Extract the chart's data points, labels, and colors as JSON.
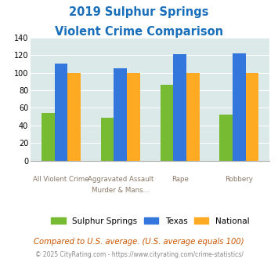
{
  "title_line1": "2019 Sulphur Springs",
  "title_line2": "Violent Crime Comparison",
  "title_color": "#1a6fbb",
  "cat_labels_top": [
    "",
    "Aggravated Assault",
    "",
    ""
  ],
  "cat_labels_bot": [
    "All Violent Crime",
    "Murder & Mans...",
    "Rape",
    "Robbery"
  ],
  "sulphur_springs": [
    54,
    49,
    86,
    52
  ],
  "texas": [
    110,
    105,
    121,
    122
  ],
  "national": [
    100,
    100,
    100,
    100
  ],
  "color_ss": "#77bb33",
  "color_tx": "#3377dd",
  "color_nat": "#ffaa22",
  "ylim": [
    0,
    140
  ],
  "yticks": [
    0,
    20,
    40,
    60,
    80,
    100,
    120,
    140
  ],
  "bg_color": "#dce9e9",
  "legend_labels": [
    "Sulphur Springs",
    "Texas",
    "National"
  ],
  "footnote1": "Compared to U.S. average. (U.S. average equals 100)",
  "footnote2": "© 2025 CityRating.com - https://www.cityrating.com/crime-statistics/",
  "footnote1_color": "#cc5500",
  "footnote2_color": "#888888"
}
